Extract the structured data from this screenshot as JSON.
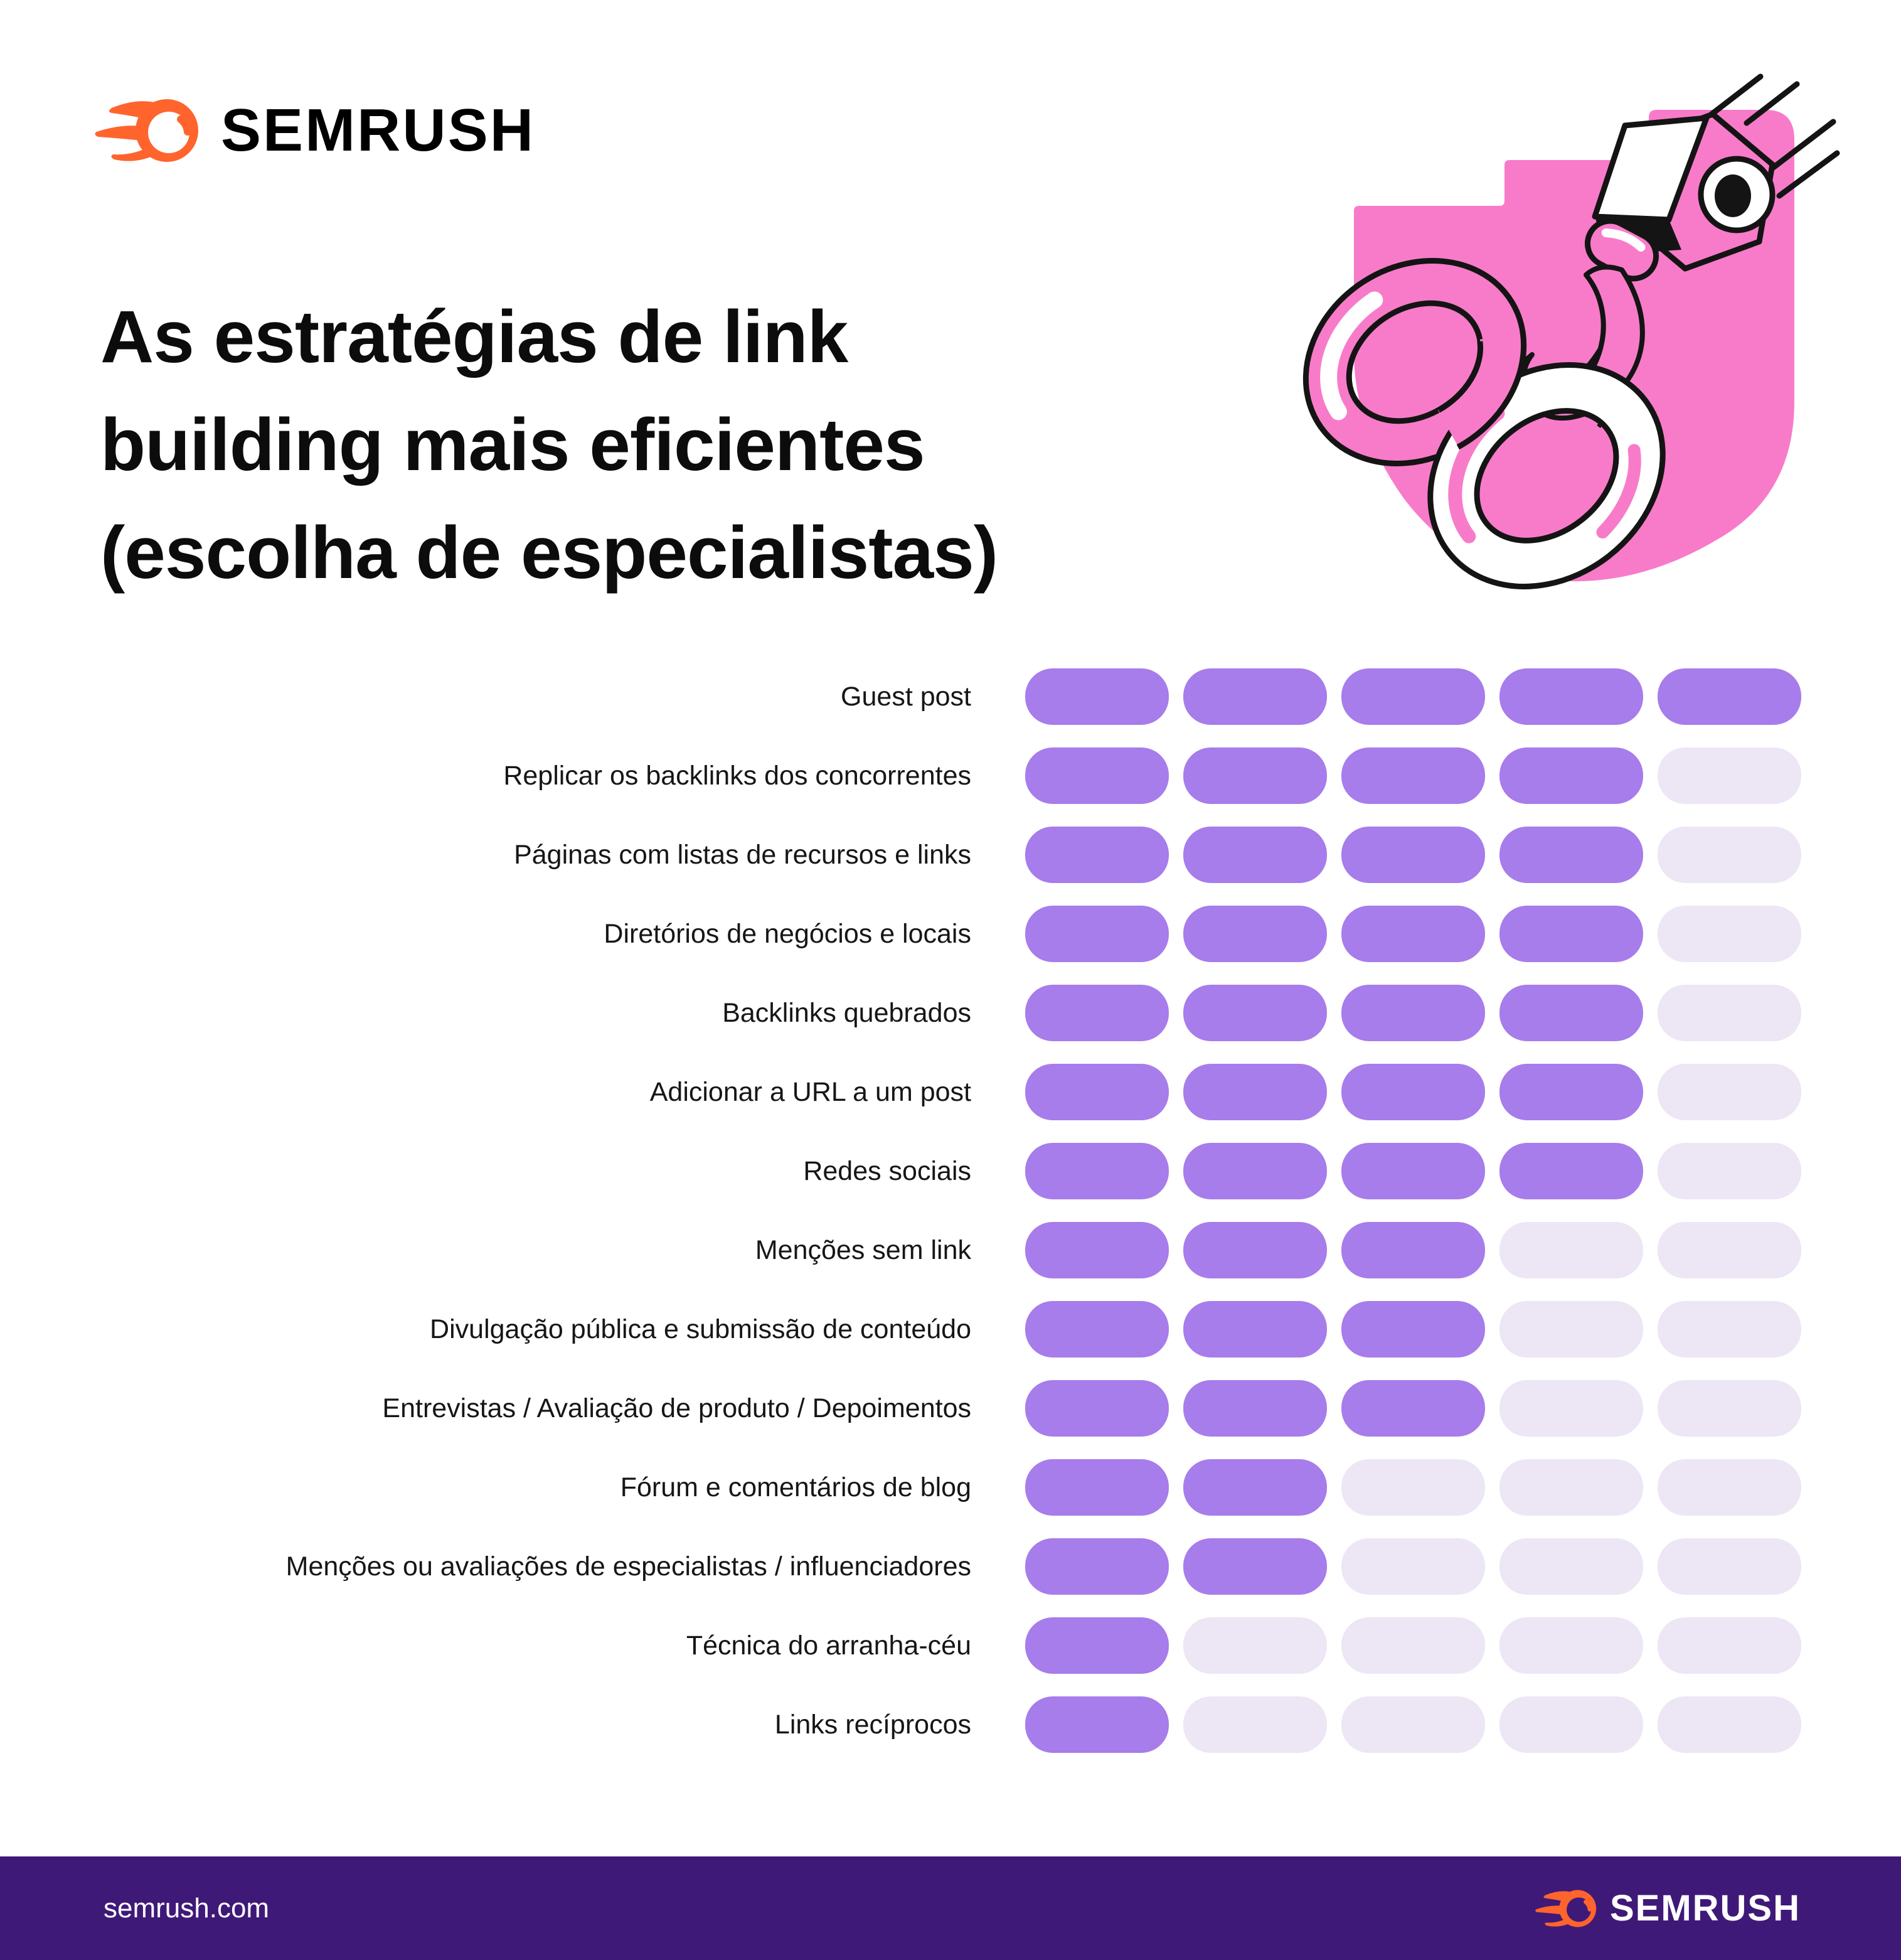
{
  "header": {
    "brand": "SEMRUSH",
    "title_lines": [
      "As estratégias de link",
      "building mais eficientes",
      "(escolha de especialistas)"
    ]
  },
  "chart_data": {
    "type": "bar",
    "subtype": "pictogram-rating-pills",
    "title": "As estratégias de link building mais eficientes (escolha de especialistas)",
    "max": 5,
    "legend_position": "none",
    "categories": [
      "Guest post",
      "Replicar os backlinks dos concorrentes",
      "Páginas com listas de recursos e links",
      "Diretórios de negócios e locais",
      "Backlinks quebrados",
      "Adicionar a URL a um post",
      "Redes sociais",
      "Menções sem link",
      "Divulgação pública e submissão de conteúdo",
      "Entrevistas / Avaliação de produto / Depoimentos",
      "Fórum e comentários de blog",
      "Menções ou avaliações de especialistas / influenciadores",
      "Técnica do arranha-céu",
      "Links recíprocos"
    ],
    "values": [
      5,
      4,
      4,
      4,
      4,
      4,
      4,
      3,
      3,
      3,
      2,
      2,
      1,
      1
    ]
  },
  "footer": {
    "url": "semrush.com",
    "brand": "SEMRUSH"
  },
  "colors": {
    "pill_filled": "#A77CEB",
    "pill_empty": "#ECE6F5",
    "illustration_pink": "#F87BC9",
    "footer_background": "#3F1978",
    "brand_orange": "#FF642D",
    "text": "#121212"
  },
  "icons": {
    "brand_icon": "semrush-comet-icon",
    "illustration": "chain-links-with-crane-hook-illustration"
  }
}
